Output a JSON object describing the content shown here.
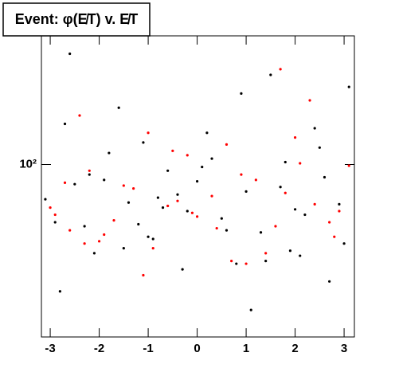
{
  "chart_data": {
    "type": "scatter",
    "title": "Event: φ(E̸T) v. E̸T",
    "xlim": [
      -3.18,
      3.21
    ],
    "xticks": [
      -3,
      -2,
      -1,
      0,
      1,
      2,
      3
    ],
    "ylim": [
      24,
      290
    ],
    "yticks": [
      {
        "value": 100,
        "label": "10²"
      }
    ],
    "log_y": true,
    "series": [
      {
        "color": "#000000",
        "x": [
          -2.9,
          -2.5,
          -2.1,
          -1.8,
          -1.4,
          -1.0,
          -0.6,
          -0.2,
          0.2,
          0.6,
          1.0,
          1.4,
          1.8,
          2.2,
          2.6,
          3.0,
          -3.1,
          -2.7,
          -2.3,
          -1.9,
          -1.5,
          -1.1,
          -0.7,
          -0.3,
          0.1,
          0.5,
          0.9,
          1.3,
          1.7,
          2.1,
          2.5,
          2.9,
          -2.8,
          -2.2,
          -1.6,
          -0.9,
          -0.4,
          0.3,
          0.8,
          1.5,
          2.0,
          2.7,
          -2.6,
          -1.2,
          0.0,
          1.1,
          2.4,
          -0.8,
          1.9,
          3.1
        ],
        "values": [
          62,
          85,
          48,
          110,
          73,
          55,
          95,
          68,
          130,
          58,
          80,
          45,
          102,
          66,
          90,
          52,
          75,
          140,
          60,
          88,
          50,
          120,
          70,
          42,
          98,
          64,
          180,
          57,
          83,
          47,
          115,
          72,
          35,
          92,
          160,
          54,
          78,
          105,
          44,
          210,
          69,
          38,
          250,
          61,
          87,
          30,
          135,
          76,
          49,
          190
        ]
      },
      {
        "color": "#ff0000",
        "x": [
          -3.0,
          -2.6,
          -2.2,
          -1.7,
          -1.3,
          -0.9,
          -0.5,
          -0.1,
          0.3,
          0.7,
          1.2,
          1.6,
          2.0,
          2.4,
          2.8,
          3.1,
          -2.9,
          -2.4,
          -2.0,
          -1.5,
          -1.1,
          -0.6,
          -0.2,
          0.4,
          0.9,
          1.4,
          1.8,
          2.3,
          2.7,
          -2.7,
          -1.9,
          -1.0,
          0.0,
          1.0,
          2.1,
          -0.4,
          1.7,
          -2.3,
          0.6,
          2.9
        ],
        "values": [
          70,
          58,
          95,
          63,
          82,
          50,
          112,
          67,
          77,
          45,
          88,
          60,
          125,
          72,
          55,
          99,
          66,
          150,
          53,
          84,
          40,
          71,
          108,
          59,
          92,
          48,
          79,
          170,
          62,
          86,
          56,
          130,
          65,
          44,
          101,
          74,
          220,
          52,
          118,
          68
        ]
      }
    ]
  }
}
